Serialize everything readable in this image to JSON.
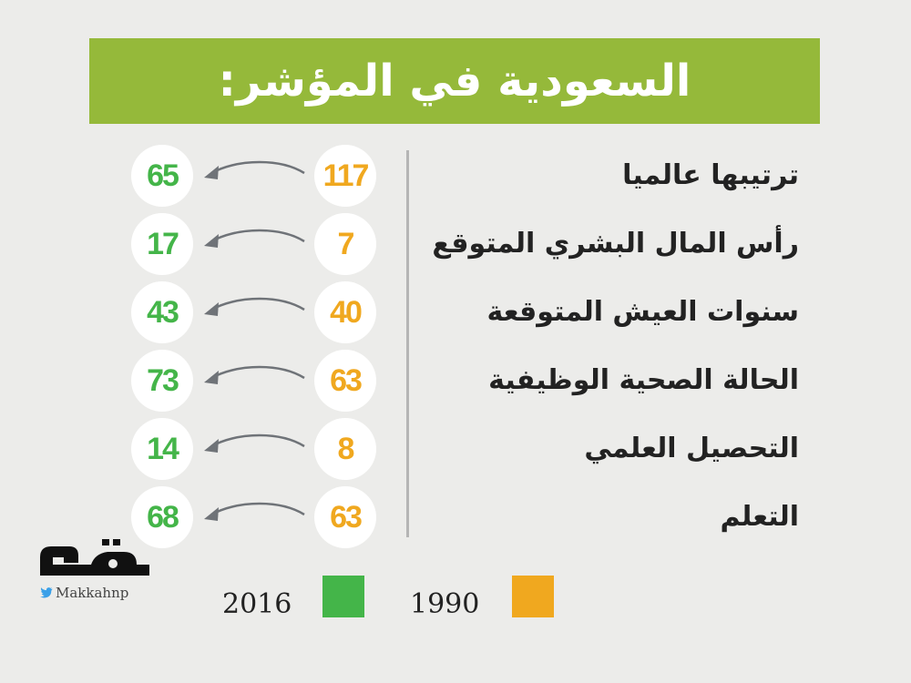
{
  "title": "السعودية في المؤشر:",
  "rows": [
    {
      "label": "ترتيبها عالميا",
      "v1990": "117",
      "v2016": "65"
    },
    {
      "label": "رأس المال البشري المتوقع",
      "v1990": "7",
      "v2016": "17"
    },
    {
      "label": "سنوات العيش المتوقعة",
      "v1990": "40",
      "v2016": "43"
    },
    {
      "label": "الحالة الصحية الوظيفية",
      "v1990": "63",
      "v2016": "73"
    },
    {
      "label": "التحصيل العلمي",
      "v1990": "8",
      "v2016": "14"
    },
    {
      "label": "التعلم",
      "v1990": "63",
      "v2016": "68"
    }
  ],
  "legend": {
    "year_2016": "2016",
    "year_1990": "1990",
    "color_2016": "#44b549",
    "color_1990": "#f0a81f"
  },
  "branding": {
    "logo": "مكة",
    "handle": "Makkahnp",
    "handle_icon": "twitter-bird-icon"
  },
  "colors": {
    "banner": "#95b93a",
    "background": "#ececea"
  }
}
